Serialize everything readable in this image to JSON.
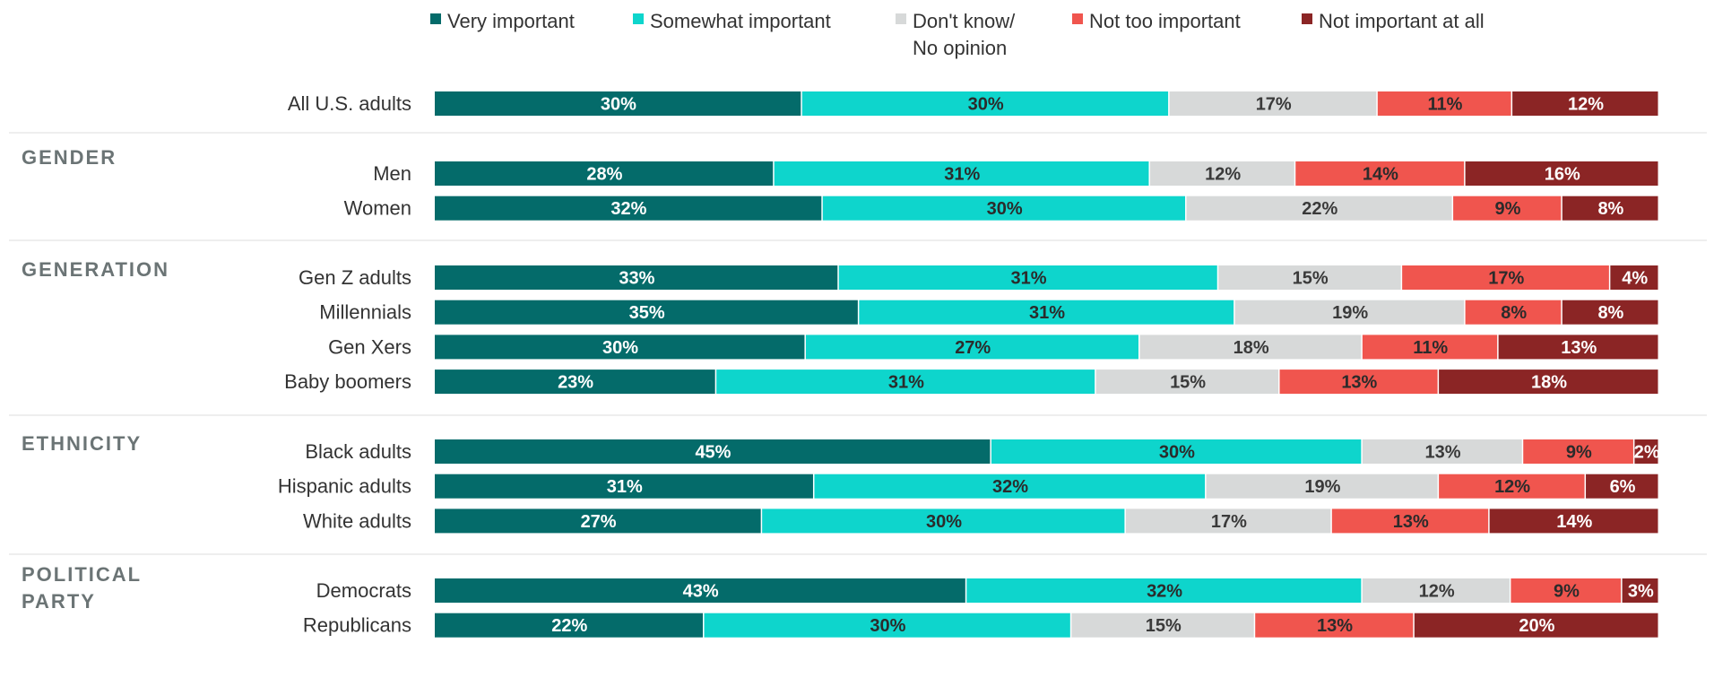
{
  "chart_data": {
    "type": "bar",
    "orientation": "horizontal",
    "stacked": true,
    "unit": "%",
    "legend_position": "top",
    "grid": false,
    "series": [
      {
        "name": "Very important",
        "color": "#046b6a",
        "label_color": "#ffffff"
      },
      {
        "name": "Somewhat important",
        "color": "#0ed5cc",
        "label_color": "#2b2b2b"
      },
      {
        "name": "Don't know/ No opinion",
        "name_lines": [
          "Don't know/",
          "No opinion"
        ],
        "color": "#d7d9d9",
        "label_color": "#3a3a3a"
      },
      {
        "name": "Not too important",
        "color": "#f0554e",
        "label_color": "#2b2b2b"
      },
      {
        "name": "Not important at all",
        "color": "#8b2525",
        "label_color": "#ffffff"
      }
    ],
    "groups": [
      {
        "name": "",
        "name_lines": [],
        "rows": [
          {
            "label": "All U.S. adults",
            "values": [
              30,
              30,
              17,
              11,
              12
            ]
          }
        ]
      },
      {
        "name": "GENDER",
        "name_lines": [
          "GENDER"
        ],
        "rows": [
          {
            "label": "Men",
            "values": [
              28,
              31,
              12,
              14,
              16
            ]
          },
          {
            "label": "Women",
            "values": [
              32,
              30,
              22,
              9,
              8
            ]
          }
        ]
      },
      {
        "name": "GENERATION",
        "name_lines": [
          "GENERATION"
        ],
        "rows": [
          {
            "label": "Gen Z adults",
            "values": [
              33,
              31,
              15,
              17,
              4
            ]
          },
          {
            "label": "Millennials",
            "values": [
              35,
              31,
              19,
              8,
              8
            ]
          },
          {
            "label": "Gen Xers",
            "values": [
              30,
              27,
              18,
              11,
              13
            ]
          },
          {
            "label": "Baby boomers",
            "values": [
              23,
              31,
              15,
              13,
              18
            ]
          }
        ]
      },
      {
        "name": "ETHNICITY",
        "name_lines": [
          "ETHNICITY"
        ],
        "rows": [
          {
            "label": "Black adults",
            "values": [
              45,
              30,
              13,
              9,
              2
            ]
          },
          {
            "label": "Hispanic adults",
            "values": [
              31,
              32,
              19,
              12,
              6
            ]
          },
          {
            "label": "White adults",
            "values": [
              27,
              30,
              17,
              13,
              14
            ]
          }
        ]
      },
      {
        "name": "POLITICAL PARTY",
        "name_lines": [
          "POLITICAL",
          "PARTY"
        ],
        "rows": [
          {
            "label": "Democrats",
            "values": [
              43,
              32,
              12,
              9,
              3
            ]
          },
          {
            "label": "Republicans",
            "values": [
              22,
              30,
              15,
              13,
              20
            ]
          }
        ]
      }
    ]
  }
}
